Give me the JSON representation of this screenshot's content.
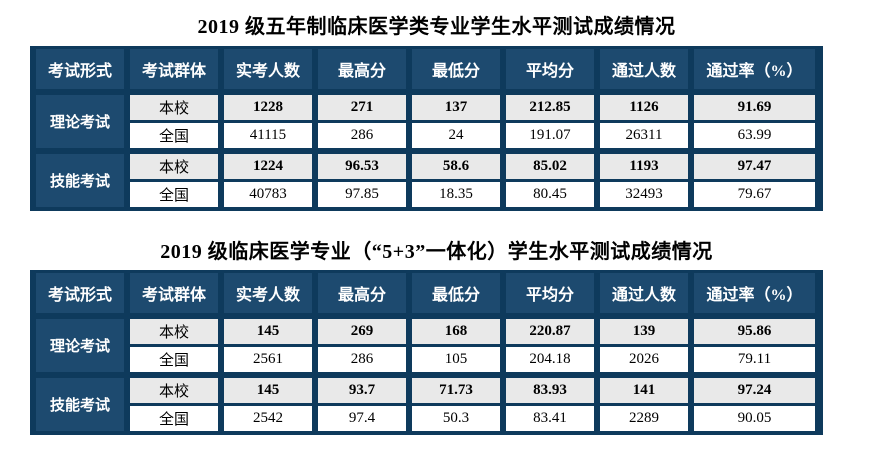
{
  "colors": {
    "table_navy": "#1d4a6f",
    "grid_line_navy": "#0e3a5c",
    "school_row_gray": "#e9e9e9",
    "national_row_white": "#ffffff",
    "header_text": "#ffffff",
    "body_text": "#000000"
  },
  "tables": [
    {
      "title": "2019 级五年制临床医学类专业学生水平测试成绩情况",
      "headers": [
        "考试形式",
        "考试群体",
        "实考人数",
        "最高分",
        "最低分",
        "平均分",
        "通过人数",
        "通过率（%）"
      ],
      "groups": [
        {
          "form": "理论考试",
          "rows": [
            {
              "cohort": "本校",
              "bold": true,
              "values": [
                "1228",
                "271",
                "137",
                "212.85",
                "1126",
                "91.69"
              ]
            },
            {
              "cohort": "全国",
              "bold": false,
              "values": [
                "41115",
                "286",
                "24",
                "191.07",
                "26311",
                "63.99"
              ]
            }
          ]
        },
        {
          "form": "技能考试",
          "rows": [
            {
              "cohort": "本校",
              "bold": true,
              "values": [
                "1224",
                "96.53",
                "58.6",
                "85.02",
                "1193",
                "97.47"
              ]
            },
            {
              "cohort": "全国",
              "bold": false,
              "values": [
                "40783",
                "97.85",
                "18.35",
                "80.45",
                "32493",
                "79.67"
              ]
            }
          ]
        }
      ]
    },
    {
      "title": "2019 级临床医学专业（“5+3”一体化）学生水平测试成绩情况",
      "headers": [
        "考试形式",
        "考试群体",
        "实考人数",
        "最高分",
        "最低分",
        "平均分",
        "通过人数",
        "通过率（%）"
      ],
      "groups": [
        {
          "form": "理论考试",
          "rows": [
            {
              "cohort": "本校",
              "bold": true,
              "values": [
                "145",
                "269",
                "168",
                "220.87",
                "139",
                "95.86"
              ]
            },
            {
              "cohort": "全国",
              "bold": false,
              "values": [
                "2561",
                "286",
                "105",
                "204.18",
                "2026",
                "79.11"
              ]
            }
          ]
        },
        {
          "form": "技能考试",
          "rows": [
            {
              "cohort": "本校",
              "bold": true,
              "values": [
                "145",
                "93.7",
                "71.73",
                "83.93",
                "141",
                "97.24"
              ]
            },
            {
              "cohort": "全国",
              "bold": false,
              "values": [
                "2542",
                "97.4",
                "50.3",
                "83.41",
                "2289",
                "90.05"
              ]
            }
          ]
        }
      ]
    }
  ]
}
